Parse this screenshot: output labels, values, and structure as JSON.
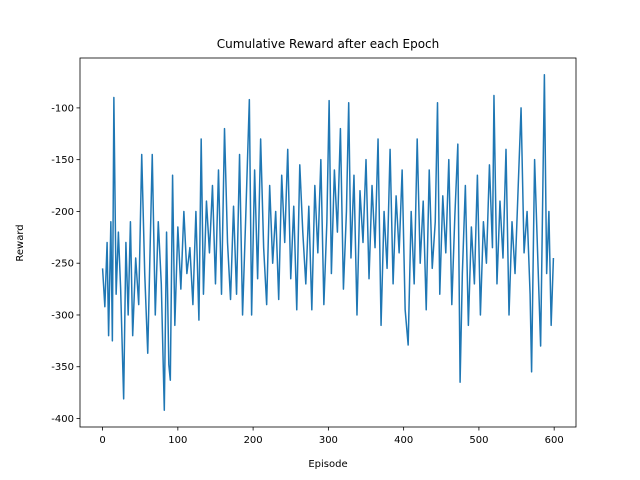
{
  "chart_data": {
    "type": "line",
    "title": "Cumulative Reward after each Epoch",
    "x_label": "Episode",
    "y_label": "Reward",
    "x": [
      0,
      3,
      6,
      8,
      11,
      13,
      15,
      18,
      21,
      24,
      28,
      31,
      34,
      37,
      40,
      44,
      48,
      52,
      56,
      60,
      63,
      66,
      70,
      74,
      78,
      82,
      85,
      88,
      90,
      93,
      96,
      100,
      104,
      108,
      112,
      116,
      120,
      124,
      128,
      131,
      134,
      138,
      142,
      146,
      150,
      154,
      158,
      162,
      166,
      170,
      174,
      178,
      182,
      186,
      190,
      195,
      198,
      202,
      206,
      210,
      214,
      218,
      222,
      226,
      230,
      234,
      238,
      242,
      246,
      250,
      254,
      258,
      262,
      266,
      270,
      274,
      278,
      282,
      286,
      290,
      294,
      298,
      301,
      304,
      308,
      312,
      316,
      320,
      324,
      327,
      330,
      334,
      338,
      342,
      346,
      350,
      354,
      358,
      362,
      366,
      370,
      374,
      378,
      382,
      386,
      390,
      394,
      398,
      402,
      406,
      410,
      414,
      418,
      422,
      426,
      430,
      434,
      438,
      442,
      445,
      448,
      452,
      456,
      460,
      464,
      468,
      472,
      475,
      478,
      482,
      486,
      490,
      494,
      498,
      502,
      506,
      510,
      514,
      518,
      520,
      524,
      528,
      532,
      536,
      540,
      544,
      548,
      552,
      556,
      560,
      564,
      568,
      570,
      574,
      578,
      582,
      585,
      587,
      590,
      593,
      596,
      599
    ],
    "series": [
      {
        "name": "Reward",
        "color": "#1f77b4",
        "values": [
          -255,
          -292,
          -230,
          -320,
          -210,
          -325,
          -90,
          -280,
          -220,
          -275,
          -381,
          -230,
          -300,
          -210,
          -320,
          -245,
          -290,
          -145,
          -260,
          -337,
          -240,
          -145,
          -300,
          -210,
          -270,
          -392,
          -220,
          -348,
          -363,
          -165,
          -310,
          -215,
          -275,
          -200,
          -260,
          -235,
          -290,
          -200,
          -305,
          -130,
          -280,
          -190,
          -240,
          -175,
          -270,
          -160,
          -280,
          -120,
          -230,
          -285,
          -195,
          -280,
          -145,
          -300,
          -210,
          -92,
          -300,
          -160,
          -265,
          -130,
          -235,
          -290,
          -175,
          -250,
          -200,
          -285,
          -165,
          -230,
          -140,
          -265,
          -195,
          -295,
          -155,
          -220,
          -270,
          -195,
          -295,
          -175,
          -240,
          -150,
          -290,
          -210,
          -93,
          -260,
          -160,
          -220,
          -120,
          -275,
          -200,
          -95,
          -245,
          -165,
          -300,
          -180,
          -230,
          -150,
          -265,
          -175,
          -235,
          -130,
          -310,
          -200,
          -255,
          -140,
          -270,
          -185,
          -240,
          -160,
          -295,
          -329,
          -200,
          -270,
          -130,
          -250,
          -190,
          -295,
          -160,
          -255,
          -210,
          -95,
          -280,
          -185,
          -240,
          -150,
          -290,
          -205,
          -135,
          -365,
          -260,
          -175,
          -310,
          -215,
          -270,
          -165,
          -300,
          -210,
          -250,
          -155,
          -235,
          -88,
          -270,
          -190,
          -245,
          -140,
          -300,
          -210,
          -260,
          -180,
          -100,
          -240,
          -200,
          -280,
          -355,
          -150,
          -240,
          -330,
          -175,
          -68,
          -260,
          -200,
          -310,
          -245
        ]
      }
    ],
    "xlim": [
      -30,
      629
    ],
    "ylim": [
      -408.2,
      -51.8
    ],
    "xticks": [
      0,
      100,
      200,
      300,
      400,
      500,
      600
    ],
    "yticks": [
      -400,
      -350,
      -300,
      -250,
      -200,
      -150,
      -100
    ]
  }
}
